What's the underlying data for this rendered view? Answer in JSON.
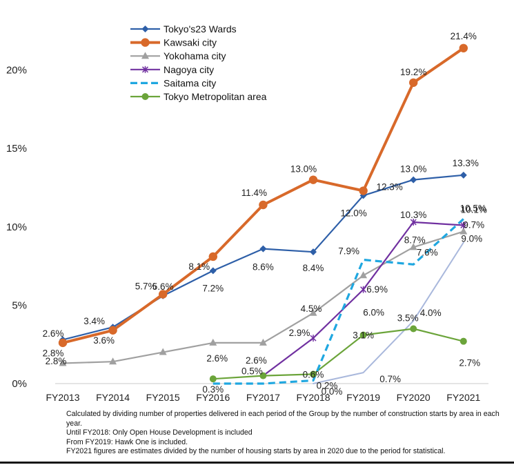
{
  "chart_data": {
    "type": "line",
    "categories": [
      "FY2013",
      "FY2014",
      "FY2015",
      "FY2016",
      "FY2017",
      "FY2018",
      "FY2019",
      "FY2020",
      "FY2021"
    ],
    "ylim": [
      0,
      21.4
    ],
    "yticks": [
      0,
      5,
      10,
      15,
      20
    ],
    "ytick_labels": [
      "0%",
      "5%",
      "10%",
      "15%",
      "20%"
    ],
    "grid": false,
    "legend_position": "top-left",
    "series": [
      {
        "name": "Tokyo's23 Wards",
        "color": "#2E5FA8",
        "marker": "diamond",
        "values": [
          2.8,
          3.6,
          5.6,
          7.2,
          8.6,
          8.4,
          12.0,
          13.0,
          13.3
        ],
        "labels": [
          "2.8%",
          "3.6%",
          "5.6%",
          "7.2%",
          "8.6%",
          "8.4%",
          "12.0%",
          "13.0%",
          "13.3%"
        ]
      },
      {
        "name": "Kawsaki city",
        "color": "#D8692A",
        "marker": "circle",
        "values": [
          2.6,
          3.4,
          5.7,
          8.1,
          11.4,
          13.0,
          12.3,
          19.2,
          21.4
        ],
        "labels": [
          "2.6%",
          "3.4%",
          "5.7%",
          "8.1%",
          "11.4%",
          "13.0%",
          "12.3%",
          "19.2%",
          "21.4%"
        ]
      },
      {
        "name": "Yokohama city",
        "color": "#A0A0A0",
        "marker": "triangle",
        "values": [
          1.3,
          1.4,
          2.0,
          2.6,
          2.6,
          4.5,
          6.9,
          8.7,
          9.7
        ],
        "labels": [
          "",
          "",
          "",
          "2.6%",
          "2.6%",
          "4.5%",
          "6.9%",
          "8.7%",
          "9.7%"
        ]
      },
      {
        "name": "Nagoya city",
        "color": "#7030A0",
        "marker": "asterisk",
        "values": [
          null,
          null,
          null,
          null,
          0.5,
          2.9,
          6.0,
          10.3,
          10.1
        ],
        "labels": [
          "",
          "",
          "",
          "",
          "0.5%",
          "2.9%",
          "6.0%",
          "10.3%",
          "10.1%"
        ]
      },
      {
        "name": "Saitama city",
        "color": "#1FA7E0",
        "marker": "none",
        "values": [
          null,
          null,
          null,
          0.0,
          0.0,
          0.2,
          7.9,
          7.6,
          10.5
        ],
        "labels": [
          "",
          "",
          "",
          "",
          "",
          "0.2%",
          "7.9%",
          "7.6%",
          "10.5%"
        ]
      },
      {
        "name": "Tokyo Metropolitan area",
        "color": "#6BA43A",
        "marker": "circle",
        "values": [
          null,
          null,
          null,
          0.3,
          0.5,
          0.6,
          3.1,
          3.5,
          2.7
        ],
        "labels": [
          "",
          "",
          "",
          "0.3%",
          "",
          "0.6%",
          "3.1%",
          "3.5%",
          "2.7%"
        ]
      },
      {
        "name": "",
        "color": "#A9B8DC",
        "marker": "none",
        "values": [
          null,
          null,
          null,
          null,
          null,
          0.0,
          0.7,
          4.0,
          9.0
        ],
        "labels": [
          "",
          "",
          "",
          "",
          "",
          "0.0%",
          "0.7%",
          "4.0%",
          "9.0%"
        ]
      }
    ]
  },
  "footnotes": [
    "Calculated by dividing number of properties delivered in each period of the Group by the number of construction starts by area in each year.",
    "Until FY2018: Only Open House Development is included",
    "From FY2019: Hawk One is included.",
    "FY2021 figures are estimates divided by the number of housing starts by area in 2020 due to the period for statistical."
  ]
}
